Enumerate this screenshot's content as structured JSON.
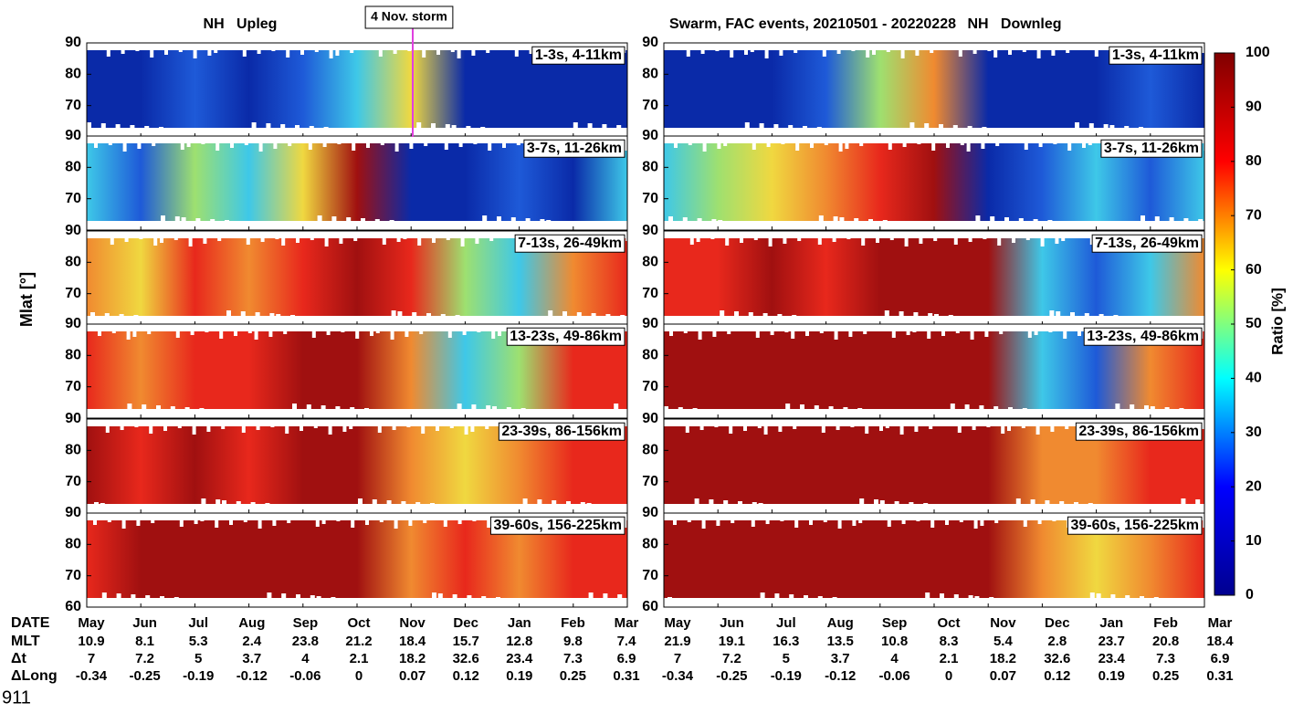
{
  "chart_data": {
    "type": "contour",
    "title": "Swarm, FAC events, 20210501 - 20220228",
    "upleg_title": "NH   Upleg",
    "downleg_title": "NH   Downleg",
    "annotation": "4 Nov. storm",
    "ylabel": "Mlat [°]",
    "panels": [
      {
        "label": "1-3s, 4-11km",
        "ylim": [
          60,
          90
        ],
        "yticks": [
          70,
          80,
          90
        ]
      },
      {
        "label": "3-7s, 11-26km",
        "ylim": [
          60,
          90
        ],
        "yticks": [
          70,
          80,
          90
        ]
      },
      {
        "label": "7-13s, 26-49km",
        "ylim": [
          60,
          90
        ],
        "yticks": [
          70,
          80,
          90
        ]
      },
      {
        "label": "13-23s, 49-86km",
        "ylim": [
          60,
          90
        ],
        "yticks": [
          70,
          80,
          90
        ]
      },
      {
        "label": "23-39s, 86-156km",
        "ylim": [
          60,
          90
        ],
        "yticks": [
          70,
          80,
          90
        ]
      },
      {
        "label": "39-60s, 156-225km",
        "ylim": [
          60,
          90
        ],
        "yticks": [
          60,
          70,
          80,
          90
        ]
      },
      {
        "label": "1-3s, 4-11km",
        "ylim": [
          60,
          90
        ],
        "yticks": [
          70,
          80,
          90
        ]
      },
      {
        "label": "3-7s, 11-26km",
        "ylim": [
          60,
          90
        ],
        "yticks": [
          70,
          80,
          90
        ]
      },
      {
        "label": "7-13s, 26-49km",
        "ylim": [
          60,
          90
        ],
        "yticks": [
          70,
          80,
          90
        ]
      },
      {
        "label": "13-23s, 49-86km",
        "ylim": [
          60,
          90
        ],
        "yticks": [
          70,
          80,
          90
        ]
      },
      {
        "label": "23-39s, 86-156km",
        "ylim": [
          60,
          90
        ],
        "yticks": [
          70,
          80,
          90
        ]
      },
      {
        "label": "39-60s, 156-225km",
        "ylim": [
          60,
          90
        ],
        "yticks": [
          60,
          70,
          80,
          90
        ]
      }
    ],
    "colorbar": {
      "label": "Ratio [%]",
      "ylim": [
        0,
        100
      ],
      "yticks": [
        0,
        10,
        20,
        30,
        40,
        50,
        60,
        70,
        80,
        90,
        100
      ]
    },
    "table": {
      "row_labels": [
        "DATE",
        "MLT",
        "Δt",
        "ΔLong"
      ],
      "upleg": [
        [
          "May",
          "Jun",
          "Jul",
          "Aug",
          "Sep",
          "Oct",
          "Nov",
          "Dec",
          "Jan",
          "Feb",
          "Mar"
        ],
        [
          10.9,
          8.1,
          5.3,
          2.4,
          23.8,
          21.2,
          18.4,
          15.7,
          12.8,
          9.8,
          7.4
        ],
        [
          7,
          7.2,
          5,
          3.7,
          4,
          2.1,
          18.2,
          32.6,
          23.4,
          7.3,
          6.9
        ],
        [
          -0.34,
          -0.25,
          -0.19,
          -0.12,
          -0.06,
          0,
          0.07,
          0.12,
          0.19,
          0.25,
          0.31
        ]
      ],
      "downleg": [
        [
          "May",
          "Jun",
          "Jul",
          "Aug",
          "Sep",
          "Oct",
          "Nov",
          "Dec",
          "Jan",
          "Feb",
          "Mar"
        ],
        [
          21.9,
          19.1,
          16.3,
          13.5,
          10.8,
          8.3,
          5.4,
          2.8,
          23.7,
          20.8,
          18.4
        ],
        [
          7,
          7.2,
          5,
          3.7,
          4,
          2.1,
          18.2,
          32.6,
          23.4,
          7.3,
          6.9
        ],
        [
          -0.34,
          -0.25,
          -0.19,
          -0.12,
          -0.06,
          0,
          0.07,
          0.12,
          0.19,
          0.25,
          0.31
        ]
      ]
    }
  },
  "footer": "911"
}
